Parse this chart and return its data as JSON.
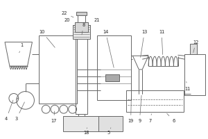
{
  "lc": "#666666",
  "lw": 0.7,
  "bg": "white",
  "figsize": [
    3.0,
    2.0
  ],
  "dpi": 100
}
